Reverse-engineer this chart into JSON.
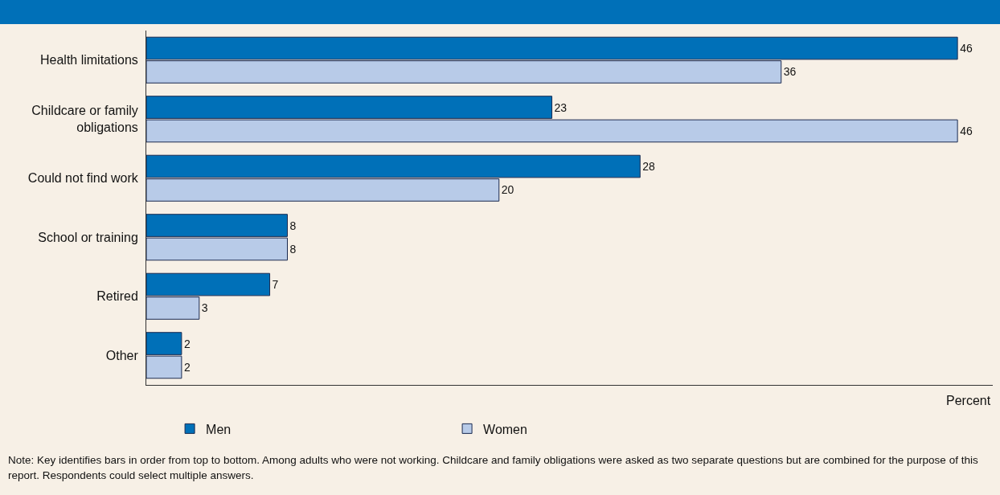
{
  "chart_data": {
    "type": "bar",
    "orientation": "horizontal",
    "categories": [
      "Health limitations",
      "Childcare or family obligations",
      "Could not find work",
      "School or training",
      "Retired",
      "Other"
    ],
    "series": [
      {
        "name": "Men",
        "color": "#0070b8",
        "values": [
          46,
          23,
          28,
          8,
          7,
          2
        ]
      },
      {
        "name": "Women",
        "color": "#b8cbe8",
        "values": [
          36,
          46,
          20,
          8,
          3,
          2
        ]
      }
    ],
    "xlabel": "Percent",
    "xlim": [
      0,
      48
    ],
    "tick_labels": "y",
    "data_labels": true,
    "legend": "bottom",
    "grid": false,
    "annotations": [
      "Note: Key identifies bars in order from top to bottom. Among adults who were not working. Childcare and family obligations were asked as two separate questions but are combined for the purpose of this report. Respondents could select multiple answers."
    ]
  }
}
